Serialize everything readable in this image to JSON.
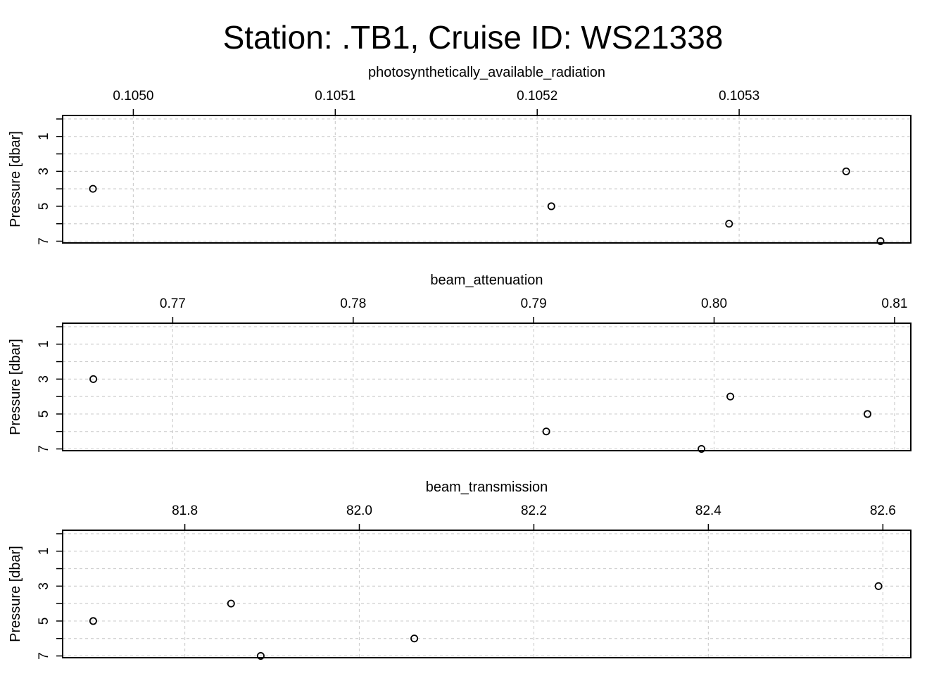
{
  "title": "Station: .TB1, Cruise ID: WS21338",
  "chart_data": [
    {
      "type": "scatter",
      "title": "photosynthetically_available_radiation",
      "xlabel": "photosynthetically_available_radiation",
      "ylabel": "Pressure [dbar]",
      "xlim": [
        0.104965,
        0.105385
      ],
      "ylim": [
        7.1,
        -0.2
      ],
      "y_reversed": true,
      "x_ticks": [
        0.105,
        0.1051,
        0.1052,
        0.1053
      ],
      "x_tick_labels": [
        "0.1050",
        "0.1051",
        "0.1052",
        "0.1053"
      ],
      "y_ticks": [
        1,
        3,
        5,
        7
      ],
      "y_tick_labels": [
        "1",
        "3",
        "5",
        "7"
      ],
      "y_minor_ticks": [
        0,
        2,
        4,
        6
      ],
      "grid": true,
      "marker": "open-circle",
      "points": [
        {
          "x": 0.10498,
          "y": 4
        },
        {
          "x": 0.105207,
          "y": 5
        },
        {
          "x": 0.105295,
          "y": 6
        },
        {
          "x": 0.105353,
          "y": 3
        },
        {
          "x": 0.10537,
          "y": 7
        }
      ]
    },
    {
      "type": "scatter",
      "title": "beam_attenuation",
      "xlabel": "beam_attenuation",
      "ylabel": "Pressure [dbar]",
      "xlim": [
        0.7639,
        0.8109
      ],
      "ylim": [
        7.1,
        -0.2
      ],
      "y_reversed": true,
      "x_ticks": [
        0.77,
        0.78,
        0.79,
        0.8,
        0.81
      ],
      "x_tick_labels": [
        "0.77",
        "0.78",
        "0.79",
        "0.80",
        "0.81"
      ],
      "y_ticks": [
        1,
        3,
        5,
        7
      ],
      "y_tick_labels": [
        "1",
        "3",
        "5",
        "7"
      ],
      "y_minor_ticks": [
        0,
        2,
        4,
        6
      ],
      "grid": true,
      "marker": "open-circle",
      "points": [
        {
          "x": 0.7656,
          "y": 3
        },
        {
          "x": 0.7907,
          "y": 6
        },
        {
          "x": 0.7993,
          "y": 7
        },
        {
          "x": 0.8009,
          "y": 4
        },
        {
          "x": 0.8085,
          "y": 5
        }
      ]
    },
    {
      "type": "scatter",
      "title": "beam_transmission",
      "xlabel": "beam_transmission",
      "ylabel": "Pressure [dbar]",
      "xlim": [
        81.66,
        82.632
      ],
      "ylim": [
        7.1,
        -0.2
      ],
      "y_reversed": true,
      "x_ticks": [
        81.8,
        82.0,
        82.2,
        82.4,
        82.6
      ],
      "x_tick_labels": [
        "81.8",
        "82.0",
        "82.2",
        "82.4",
        "82.6"
      ],
      "y_ticks": [
        1,
        3,
        5,
        7
      ],
      "y_tick_labels": [
        "1",
        "3",
        "5",
        "7"
      ],
      "y_minor_ticks": [
        0,
        2,
        4,
        6
      ],
      "grid": true,
      "marker": "open-circle",
      "points": [
        {
          "x": 81.695,
          "y": 5
        },
        {
          "x": 81.853,
          "y": 4
        },
        {
          "x": 81.887,
          "y": 7
        },
        {
          "x": 82.063,
          "y": 6
        },
        {
          "x": 82.595,
          "y": 3
        }
      ]
    }
  ]
}
